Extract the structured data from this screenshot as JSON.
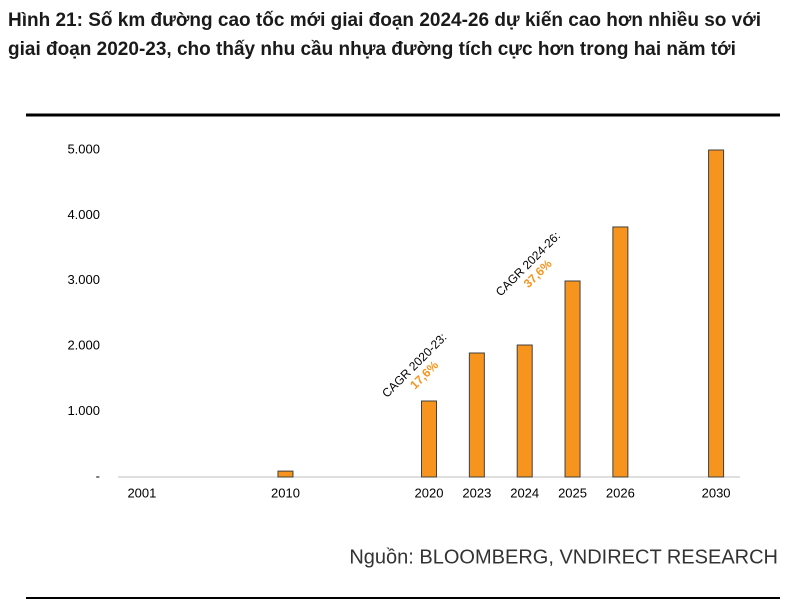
{
  "chart_data": {
    "type": "bar",
    "title": "Hình 21: Số km đường cao tốc mới giai đoạn 2024-26 dự kiến cao hơn nhiều so với giai đoạn 2020-23, cho thấy nhu cầu nhựa đường tích cực hơn trong hai năm tới",
    "categories": [
      "2001",
      null,
      null,
      "2010",
      null,
      null,
      "2020",
      "2023",
      "2024",
      "2025",
      "2026",
      null,
      "2030"
    ],
    "values": [
      0,
      null,
      null,
      90,
      null,
      null,
      1162,
      1896,
      2018,
      2997,
      3823,
      null,
      5000
    ],
    "color": "#f7941d",
    "ylim": [
      0,
      5000
    ],
    "yticks": [
      {
        "value": 0,
        "label": "-"
      },
      {
        "value": 1000,
        "label": "1.000"
      },
      {
        "value": 2000,
        "label": "2.000"
      },
      {
        "value": 3000,
        "label": "3.000"
      },
      {
        "value": 4000,
        "label": "4.000"
      },
      {
        "value": 5000,
        "label": "5.000"
      }
    ],
    "grid": false,
    "annotations": [
      {
        "text": "CAGR 2020-23:",
        "color": "#000000"
      },
      {
        "text": "17,6%",
        "color": "#f7941d"
      },
      {
        "text": "CAGR 2024-26:",
        "color": "#000000"
      },
      {
        "text": "37,6%",
        "color": "#f7941d"
      }
    ],
    "source": "Nguồn: BLOOMBERG, VNDIRECT RESEARCH"
  }
}
